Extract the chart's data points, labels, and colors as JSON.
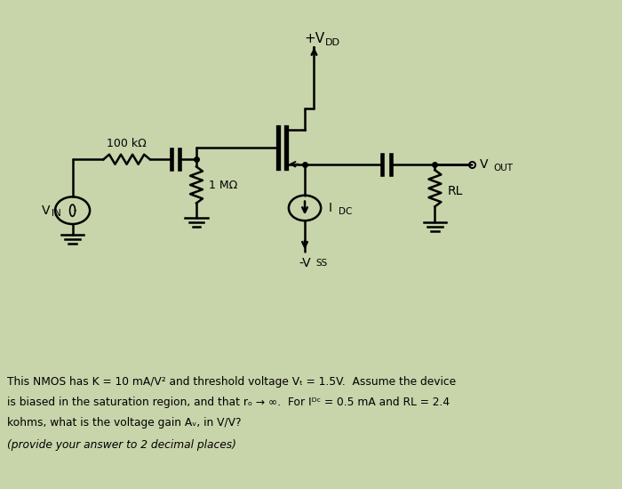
{
  "bg_color": "#c8d4aa",
  "line_color": "#000000",
  "text_color": "#000000",
  "title_text": "+V",
  "title_sub": "DD",
  "label_vin": "V",
  "label_vin_sub": "IN",
  "label_vout": "V",
  "label_vout_sub": "OUT",
  "label_vss": "-V",
  "label_vss_sub": "SS",
  "label_idc": "I",
  "label_idc_sub": "DC",
  "label_rl": "RL",
  "label_100k": "100 kΩ",
  "label_1m": "1 MΩ",
  "question_line1": "This NMOS has K = 10 mA/V² and threshold voltage Vₜ = 1.5V.  Assume the device",
  "question_line2": "is biased in the saturation region, and that rₒ → ∞.  For Iᴰᶜ = 0.5 mA and RL = 2.4",
  "question_line3": "kohms, what is the voltage gain Aᵥ, in V/V?",
  "question_line4": "(provide your answer to 2 decimal places)"
}
